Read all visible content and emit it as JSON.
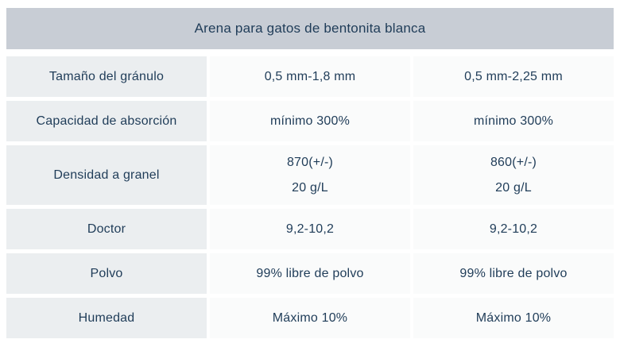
{
  "colors": {
    "page_bg": "#ffffff",
    "header_bg": "#c8cdd5",
    "label_bg": "#ebeef0",
    "value_bg": "#fafbfb",
    "text": "#1f3c58"
  },
  "chart_data": {
    "type": "table",
    "title": "Arena para gatos de bentonita blanca",
    "rows": [
      {
        "label": "Tamaño del gránulo",
        "values": [
          [
            "0,5 mm-1,8 mm"
          ],
          [
            "0,5 mm-2,25 mm"
          ]
        ]
      },
      {
        "label": "Capacidad de absorción",
        "values": [
          [
            "mínimo 300%"
          ],
          [
            "mínimo 300%"
          ]
        ]
      },
      {
        "label": "Densidad a granel",
        "values": [
          [
            "870(+/-)",
            "20 g/L"
          ],
          [
            "860(+/-)",
            "20 g/L"
          ]
        ]
      },
      {
        "label": "Doctor",
        "values": [
          [
            "9,2-10,2"
          ],
          [
            "9,2-10,2"
          ]
        ]
      },
      {
        "label": "Polvo",
        "values": [
          [
            "99% libre de polvo"
          ],
          [
            "99% libre de polvo"
          ]
        ]
      },
      {
        "label": "Humedad",
        "values": [
          [
            "Máximo 10%"
          ],
          [
            "Máximo 10%"
          ]
        ]
      }
    ]
  }
}
